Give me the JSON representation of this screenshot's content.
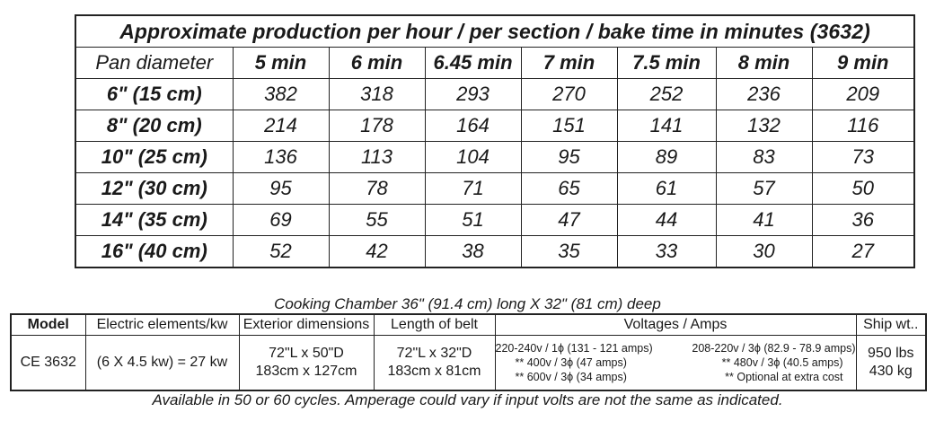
{
  "production": {
    "title": "Approximate production per hour / per section / bake time in minutes (3632)",
    "header_label": "Pan diameter",
    "times": [
      "5 min",
      "6 min",
      "6.45 min",
      "7 min",
      "7.5 min",
      "8 min",
      "9 min"
    ],
    "rows": [
      {
        "label": "6\"  (15 cm)",
        "values": [
          "382",
          "318",
          "293",
          "270",
          "252",
          "236",
          "209"
        ]
      },
      {
        "label": "8\"  (20 cm)",
        "values": [
          "214",
          "178",
          "164",
          "151",
          "141",
          "132",
          "116"
        ]
      },
      {
        "label": "10\"  (25 cm)",
        "values": [
          "136",
          "113",
          "104",
          "95",
          "89",
          "83",
          "73"
        ]
      },
      {
        "label": "12\"  (30 cm)",
        "values": [
          "95",
          "78",
          "71",
          "65",
          "61",
          "57",
          "50"
        ]
      },
      {
        "label": "14\"  (35 cm)",
        "values": [
          "69",
          "55",
          "51",
          "47",
          "44",
          "41",
          "36"
        ]
      },
      {
        "label": "16\"  (40 cm)",
        "values": [
          "52",
          "42",
          "38",
          "35",
          "33",
          "30",
          "27"
        ]
      }
    ]
  },
  "caption": "Cooking Chamber 36\" (91.4 cm) long X 32\" (81 cm) deep",
  "spec": {
    "headers": {
      "model": "Model",
      "elements": "Electric elements/kw",
      "exterior": "Exterior dimensions",
      "belt": "Length of belt",
      "voltages": "Voltages / Amps",
      "ship": "Ship wt.."
    },
    "model": "CE 3632",
    "elements": "(6 X 4.5 kw) = 27 kw",
    "exterior_1": "72\"L x 50\"D",
    "exterior_2": "183cm x 127cm",
    "belt_1": "72\"L x 32\"D",
    "belt_2": "183cm x 81cm",
    "volt_1a": "220-240v / 1ϕ  (131 - 121 amps)",
    "volt_1b": "208-220v / 3ϕ  (82.9 - 78.9 amps)",
    "volt_2a": "** 400v / 3ϕ  (47 amps)",
    "volt_2b": "** 480v / 3ϕ  (40.5 amps)",
    "volt_3a": "** 600v / 3ϕ  (34 amps)",
    "volt_3b": "** Optional at extra cost",
    "ship_1": "950 lbs",
    "ship_2": "430 kg"
  },
  "footer": "Available in 50 or 60 cycles.  Amperage could vary if input volts are not the same as indicated."
}
